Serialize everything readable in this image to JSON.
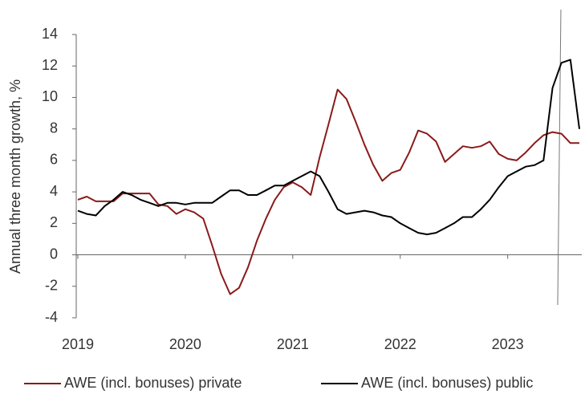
{
  "chart_data": {
    "type": "line",
    "ylabel": "Annual three month growth, %",
    "x": [
      2019,
      2019.083,
      2019.167,
      2019.25,
      2019.333,
      2019.417,
      2019.5,
      2019.583,
      2019.667,
      2019.75,
      2019.833,
      2019.917,
      2020,
      2020.083,
      2020.167,
      2020.25,
      2020.333,
      2020.417,
      2020.5,
      2020.583,
      2020.667,
      2020.75,
      2020.833,
      2020.917,
      2021,
      2021.083,
      2021.167,
      2021.25,
      2021.333,
      2021.417,
      2021.5,
      2021.583,
      2021.667,
      2021.75,
      2021.833,
      2021.917,
      2022,
      2022.083,
      2022.167,
      2022.25,
      2022.333,
      2022.417,
      2022.5,
      2022.583,
      2022.667,
      2022.75,
      2022.833,
      2022.917,
      2023,
      2023.083,
      2023.167,
      2023.25,
      2023.333,
      2023.417,
      2023.5,
      2023.583,
      2023.667
    ],
    "series": [
      {
        "name": "AWE (incl. bonuses) private",
        "color": "#8b1a1a",
        "values": [
          3.5,
          3.7,
          3.4,
          3.4,
          3.4,
          3.9,
          3.9,
          3.9,
          3.9,
          3.2,
          3.1,
          2.6,
          2.9,
          2.7,
          2.3,
          0.6,
          -1.2,
          -2.5,
          -2.1,
          -0.8,
          0.9,
          2.3,
          3.5,
          4.3,
          4.6,
          4.3,
          3.8,
          6.2,
          8.3,
          10.5,
          9.9,
          8.5,
          7.0,
          5.7,
          4.7,
          5.2,
          5.4,
          6.5,
          7.9,
          7.7,
          7.2,
          5.9,
          6.4,
          6.9,
          6.8,
          6.9,
          7.2,
          6.4,
          6.1,
          6.0,
          6.5,
          7.1,
          7.6,
          7.8,
          7.7,
          7.1,
          7.1
        ]
      },
      {
        "name": "AWE (incl. bonuses) public",
        "color": "#000000",
        "values": [
          2.8,
          2.6,
          2.5,
          3.1,
          3.5,
          4.0,
          3.8,
          3.5,
          3.3,
          3.1,
          3.3,
          3.3,
          3.2,
          3.3,
          3.3,
          3.3,
          3.7,
          4.1,
          4.1,
          3.8,
          3.8,
          4.1,
          4.4,
          4.4,
          4.7,
          5.0,
          5.3,
          5.0,
          4.0,
          2.9,
          2.6,
          2.7,
          2.8,
          2.7,
          2.5,
          2.4,
          2.0,
          1.7,
          1.4,
          1.3,
          1.4,
          1.7,
          2.0,
          2.4,
          2.4,
          2.9,
          3.5,
          4.3,
          5.0,
          5.3,
          5.6,
          5.7,
          6.0,
          10.6,
          12.2,
          12.4,
          8.0
        ]
      }
    ],
    "xlim": [
      2019,
      2023.667
    ],
    "xticks": [
      2019,
      2020,
      2021,
      2022,
      2023
    ],
    "ylim": [
      -4,
      14
    ],
    "yticks": [
      -4,
      -2,
      0,
      2,
      4,
      6,
      8,
      10,
      12,
      14
    ],
    "vline_x": 2023.48,
    "grid": false,
    "legend": "bottom"
  }
}
